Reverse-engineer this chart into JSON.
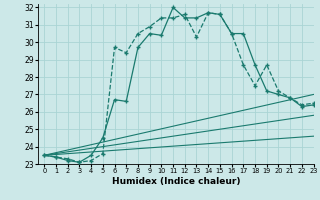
{
  "xlabel": "Humidex (Indice chaleur)",
  "xlim": [
    -0.5,
    23
  ],
  "ylim": [
    23,
    32.2
  ],
  "yticks": [
    23,
    24,
    25,
    26,
    27,
    28,
    29,
    30,
    31,
    32
  ],
  "xticks": [
    0,
    1,
    2,
    3,
    4,
    5,
    6,
    7,
    8,
    9,
    10,
    11,
    12,
    13,
    14,
    15,
    16,
    17,
    18,
    19,
    20,
    21,
    22,
    23
  ],
  "bg_color": "#cce8e8",
  "grid_color": "#aad4d4",
  "line_color": "#1a7a6e",
  "series1_x": [
    0,
    1,
    2,
    3,
    4,
    5,
    6,
    7,
    8,
    9,
    10,
    11,
    12,
    13,
    14,
    15,
    16,
    17,
    18,
    19,
    20,
    21,
    22,
    23
  ],
  "series1_y": [
    23.5,
    23.4,
    23.3,
    23.1,
    23.2,
    23.6,
    29.7,
    29.4,
    30.5,
    30.9,
    31.4,
    31.4,
    31.6,
    30.3,
    31.7,
    31.6,
    30.5,
    28.7,
    27.5,
    28.7,
    27.2,
    26.8,
    26.4,
    26.5
  ],
  "series2_x": [
    0,
    1,
    2,
    3,
    4,
    5,
    6,
    7,
    8,
    9,
    10,
    11,
    12,
    13,
    14,
    15,
    16,
    17,
    18,
    19,
    20,
    21,
    22,
    23
  ],
  "series2_y": [
    23.5,
    23.4,
    23.2,
    23.1,
    23.5,
    24.5,
    26.7,
    26.6,
    29.7,
    30.5,
    30.4,
    32.0,
    31.4,
    31.4,
    31.7,
    31.6,
    30.5,
    30.5,
    28.7,
    27.2,
    27.0,
    26.8,
    26.3,
    26.4
  ],
  "ref_lines": [
    {
      "x": [
        0,
        23
      ],
      "y": [
        23.5,
        27.0
      ]
    },
    {
      "x": [
        0,
        23
      ],
      "y": [
        23.5,
        25.8
      ]
    },
    {
      "x": [
        0,
        23
      ],
      "y": [
        23.5,
        24.6
      ]
    }
  ]
}
